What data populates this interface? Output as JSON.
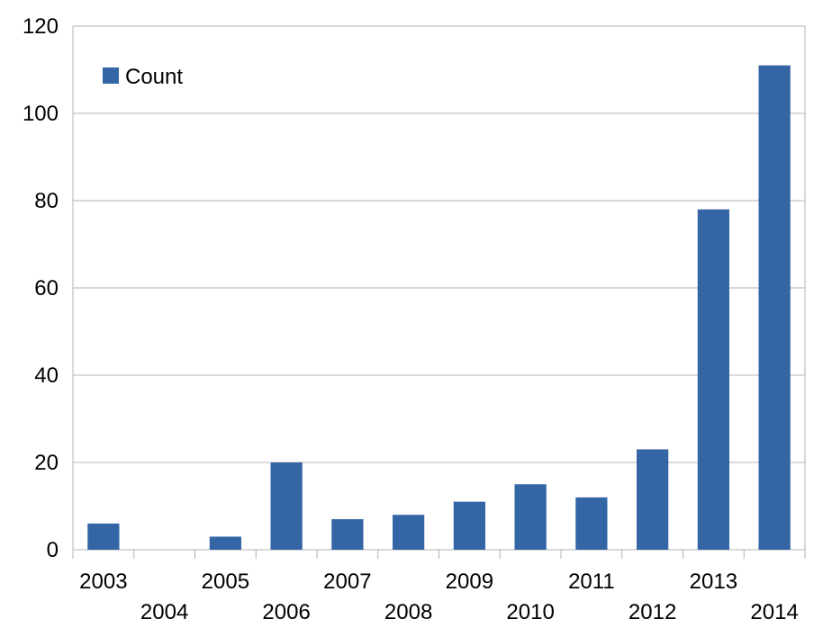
{
  "chart_data": {
    "type": "bar",
    "categories": [
      "2003",
      "2004",
      "2005",
      "2006",
      "2007",
      "2008",
      "2009",
      "2010",
      "2011",
      "2012",
      "2013",
      "2014"
    ],
    "series": [
      {
        "name": "Count",
        "values": [
          6,
          0,
          3,
          20,
          7,
          8,
          11,
          15,
          12,
          23,
          78,
          111
        ],
        "color": "#3465a4"
      }
    ],
    "title": "",
    "xlabel": "",
    "ylabel": "",
    "ylim": [
      0,
      120
    ],
    "yticks": [
      0,
      20,
      40,
      60,
      80,
      100,
      120
    ],
    "grid": true,
    "gridColor": "#b3b3b3",
    "legend": "top-left",
    "xTickLabelsStaggered": true
  }
}
